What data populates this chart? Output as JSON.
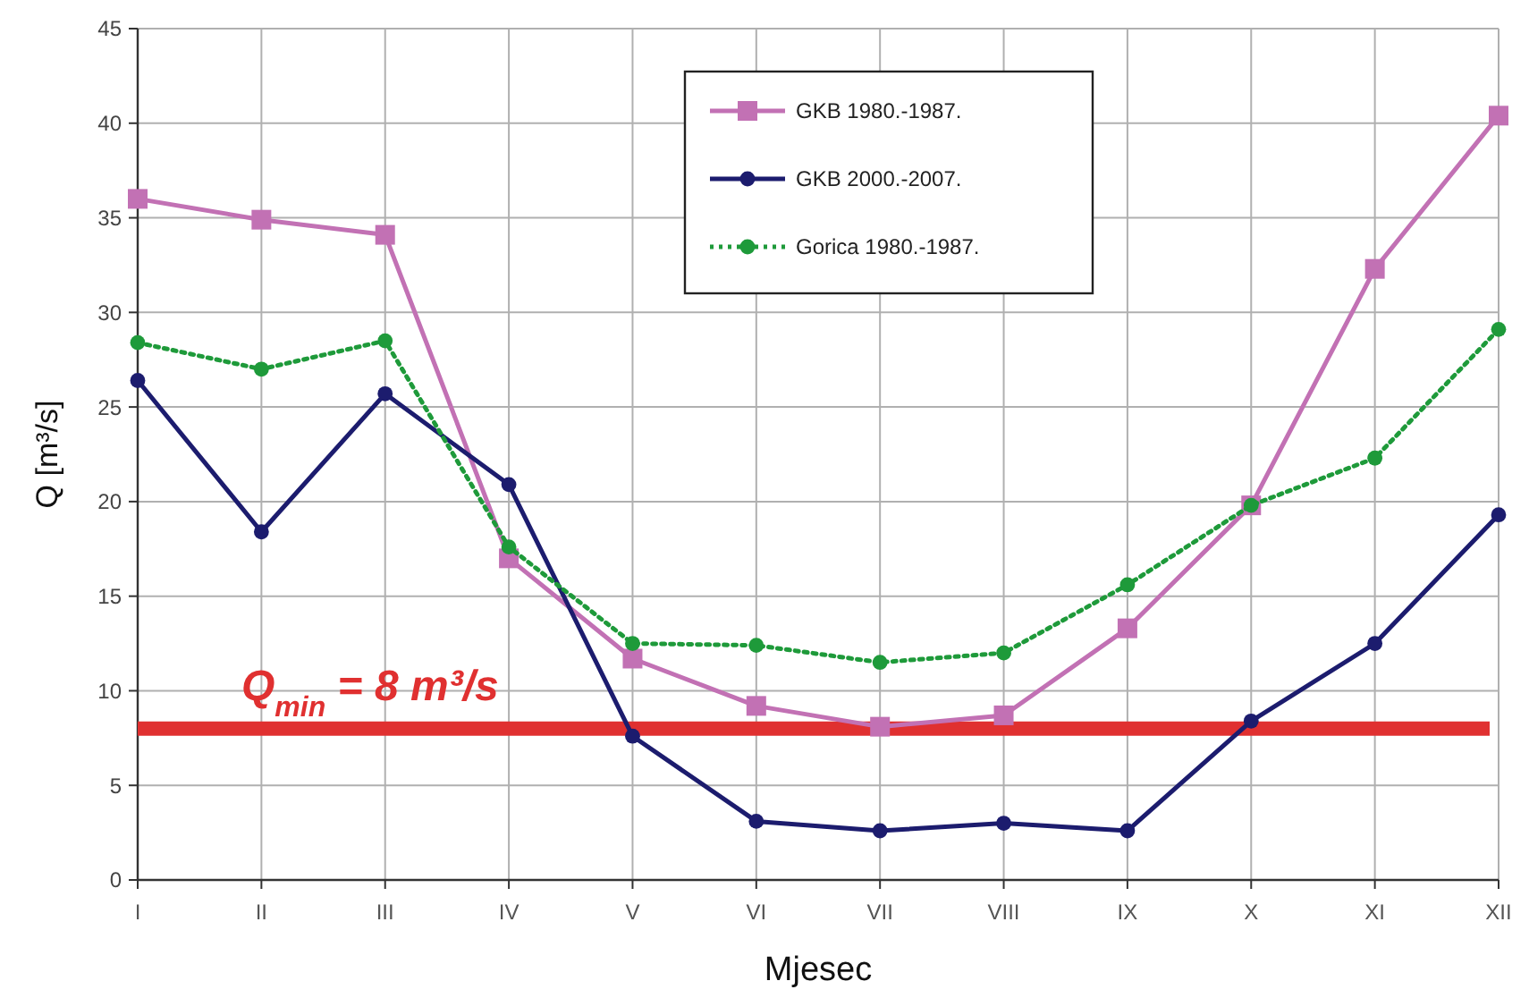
{
  "chart_data": {
    "type": "line",
    "xlabel": "Mjesec",
    "ylabel": "Q [m³/s]",
    "categories": [
      "I",
      "II",
      "III",
      "IV",
      "V",
      "VI",
      "VII",
      "VIII",
      "IX",
      "X",
      "XI",
      "XII"
    ],
    "series": [
      {
        "name": "GKB 1980.-1987.",
        "color": "#c271b4",
        "marker": "square",
        "line_style": "solid",
        "values": [
          36,
          34.9,
          34.1,
          17,
          11.7,
          9.2,
          8.1,
          8.7,
          13.3,
          19.8,
          32.3,
          40.4
        ]
      },
      {
        "name": "GKB 2000.-2007.",
        "color": "#1c1c6e",
        "marker": "circle",
        "line_style": "solid",
        "values": [
          26.4,
          18.4,
          25.7,
          20.9,
          7.6,
          3.1,
          2.6,
          3.0,
          2.6,
          8.4,
          12.5,
          19.3
        ]
      },
      {
        "name": "Gorica 1980.-1987.",
        "color": "#1e9a3a",
        "marker": "circle",
        "line_style": "dotted",
        "values": [
          28.4,
          27,
          28.5,
          17.6,
          12.5,
          12.4,
          11.5,
          12,
          15.6,
          19.8,
          22.3,
          29.1
        ]
      }
    ],
    "ylim": [
      0,
      45
    ],
    "yticks": [
      0,
      5,
      10,
      15,
      20,
      25,
      30,
      35,
      40,
      45
    ],
    "grid": true,
    "legend": "top",
    "ref_lines": [
      {
        "axis": "y",
        "value": 8,
        "label": "Q$_{min}$ = 8 m³/s",
        "color": "#e03030"
      }
    ]
  }
}
